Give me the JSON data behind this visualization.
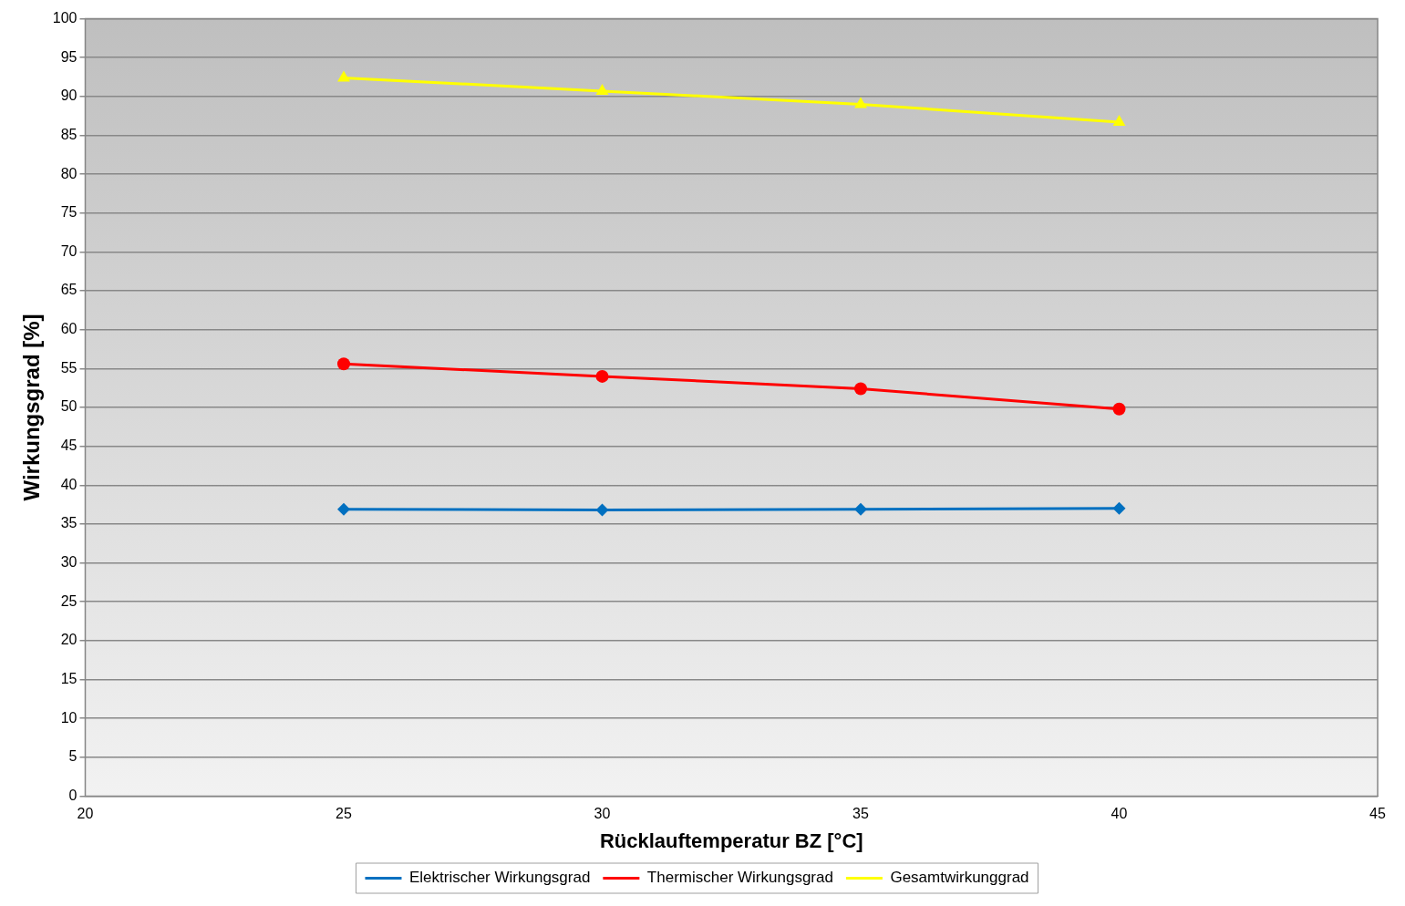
{
  "chart_data": {
    "type": "line",
    "xlabel": "Rücklauftemperatur BZ [°C]",
    "ylabel": "Wirkungsgrad [%]",
    "x": [
      25,
      30,
      35,
      40
    ],
    "series": [
      {
        "name": "Elektrischer Wirkungsgrad",
        "color": "#0070c0",
        "values": [
          36.9,
          36.8,
          36.9,
          37.0
        ],
        "marker": "diamond"
      },
      {
        "name": "Thermischer Wirkungsgrad",
        "color": "#ff0000",
        "values": [
          55.6,
          54.0,
          52.4,
          49.8
        ],
        "marker": "circle"
      },
      {
        "name": "Gesamtwirkunggrad",
        "color": "#ffff00",
        "values": [
          92.4,
          90.7,
          89.0,
          86.7
        ],
        "marker": "triangle"
      }
    ],
    "xlim": [
      20,
      45
    ],
    "xticks": [
      20,
      25,
      30,
      35,
      40,
      45
    ],
    "ylim": [
      0,
      100
    ],
    "yticks": [
      0,
      5,
      10,
      15,
      20,
      25,
      30,
      35,
      40,
      45,
      50,
      55,
      60,
      65,
      70,
      75,
      80,
      85,
      90,
      95,
      100
    ],
    "grid": "y",
    "legend": "bottom"
  }
}
